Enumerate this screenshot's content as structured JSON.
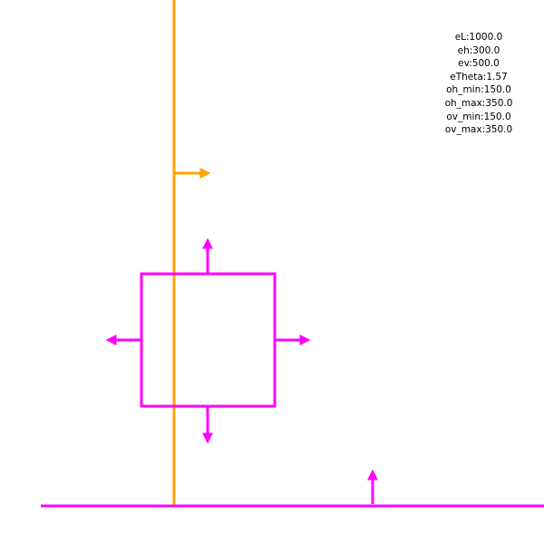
{
  "parameters": [
    {
      "label": "eL:1000.0"
    },
    {
      "label": "eh:300.0"
    },
    {
      "label": "ev:500.0"
    },
    {
      "label": "eTheta:1.57"
    },
    {
      "label": "oh_min:150.0"
    },
    {
      "label": "oh_max:350.0"
    },
    {
      "label": "ov_min:150.0"
    },
    {
      "label": "ov_max:350.0"
    }
  ],
  "colors": {
    "orange": "#ffa500",
    "magenta": "#ff00ff",
    "text": "#000000",
    "background": "#ffffff"
  }
}
